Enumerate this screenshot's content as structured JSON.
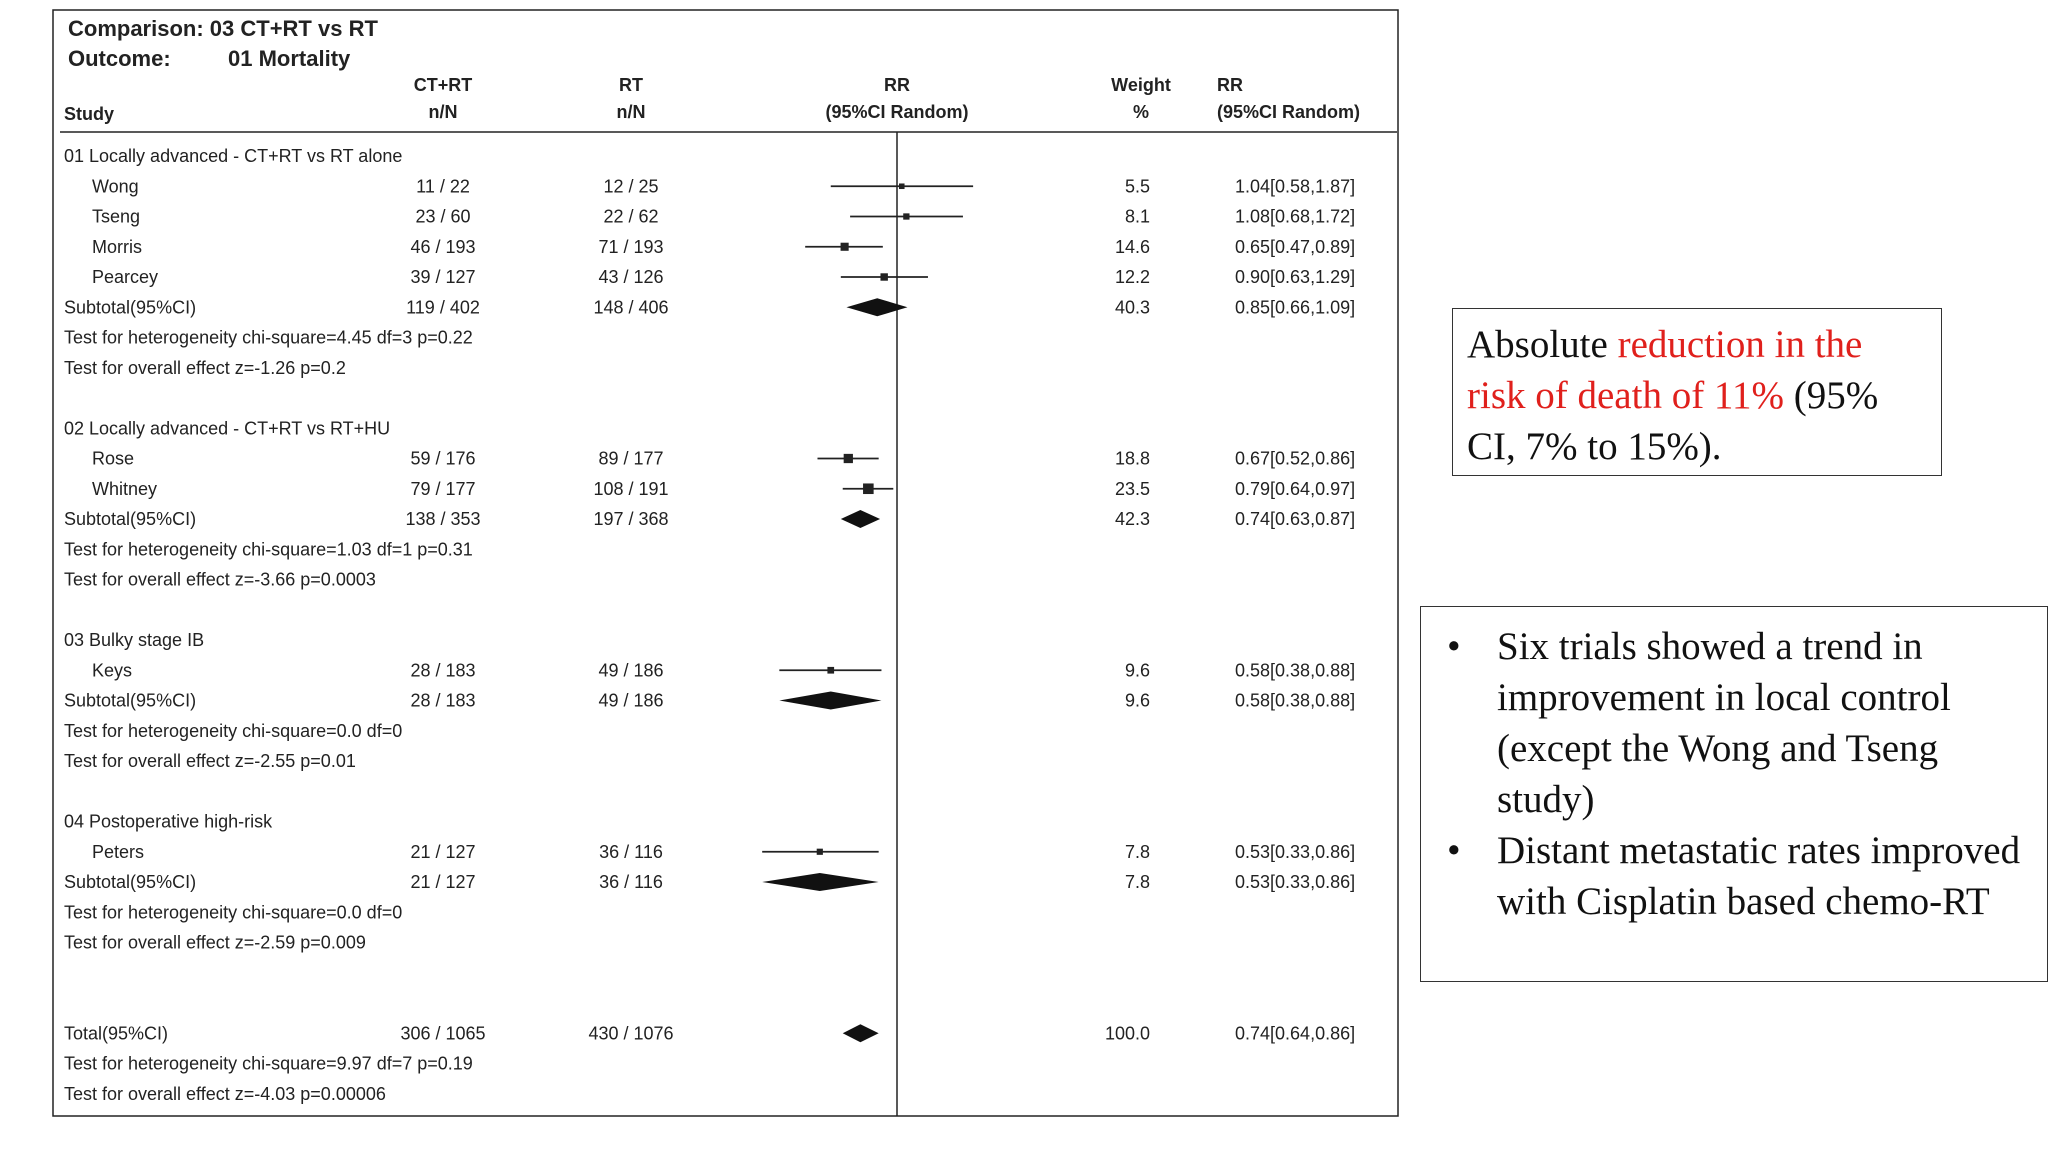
{
  "chart_data": {
    "type": "forest",
    "comparison_label": "Comparison: 03 CT+RT vs RT",
    "outcome_label": "Outcome:",
    "outcome_value": "01 Mortality",
    "columns": {
      "study": "Study",
      "treatment": [
        "CT+RT",
        "n/N"
      ],
      "control": [
        "RT",
        "n/N"
      ],
      "plot": [
        "RR",
        "(95%CI Random)"
      ],
      "weight": [
        "Weight",
        "%"
      ],
      "rr": [
        "RR",
        "(95%CI Random)"
      ]
    },
    "rows": [
      {
        "kind": "group",
        "label": "01 Locally advanced - CT+RT vs RT alone"
      },
      {
        "kind": "study",
        "name": "Wong",
        "treat": "11 / 22",
        "ctrl": "12 / 25",
        "weight": "5.5",
        "rr_text": "1.04[0.58,1.87]",
        "rr": 1.04,
        "lo": 0.58,
        "hi": 1.87
      },
      {
        "kind": "study",
        "name": "Tseng",
        "treat": "23 / 60",
        "ctrl": "22 / 62",
        "weight": "8.1",
        "rr_text": "1.08[0.68,1.72]",
        "rr": 1.08,
        "lo": 0.68,
        "hi": 1.72
      },
      {
        "kind": "study",
        "name": "Morris",
        "treat": "46 / 193",
        "ctrl": "71 / 193",
        "weight": "14.6",
        "rr_text": "0.65[0.47,0.89]",
        "rr": 0.65,
        "lo": 0.47,
        "hi": 0.89
      },
      {
        "kind": "study",
        "name": "Pearcey",
        "treat": "39 / 127",
        "ctrl": "43 / 126",
        "weight": "12.2",
        "rr_text": "0.90[0.63,1.29]",
        "rr": 0.9,
        "lo": 0.63,
        "hi": 1.29
      },
      {
        "kind": "subtotal",
        "name": "Subtotal(95%CI)",
        "treat": "119 / 402",
        "ctrl": "148 / 406",
        "weight": "40.3",
        "rr_text": "0.85[0.66,1.09]",
        "rr": 0.85,
        "lo": 0.66,
        "hi": 1.09
      },
      {
        "kind": "test",
        "label": "Test for heterogeneity chi-square=4.45  df=3  p=0.22"
      },
      {
        "kind": "test",
        "label": "Test for overall effect  z=-1.26  p=0.2"
      },
      {
        "kind": "blank"
      },
      {
        "kind": "group",
        "label": "02 Locally advanced - CT+RT vs RT+HU"
      },
      {
        "kind": "study",
        "name": "Rose",
        "treat": "59 / 176",
        "ctrl": "89 / 177",
        "weight": "18.8",
        "rr_text": "0.67[0.52,0.86]",
        "rr": 0.67,
        "lo": 0.52,
        "hi": 0.86
      },
      {
        "kind": "study",
        "name": "Whitney",
        "treat": "79 / 177",
        "ctrl": "108 / 191",
        "weight": "23.5",
        "rr_text": "0.79[0.64,0.97]",
        "rr": 0.79,
        "lo": 0.64,
        "hi": 0.97
      },
      {
        "kind": "subtotal",
        "name": "Subtotal(95%CI)",
        "treat": "138 / 353",
        "ctrl": "197 / 368",
        "weight": "42.3",
        "rr_text": "0.74[0.63,0.87]",
        "rr": 0.74,
        "lo": 0.63,
        "hi": 0.87
      },
      {
        "kind": "test",
        "label": "Test for heterogeneity chi-square=1.03  df=1  p=0.31"
      },
      {
        "kind": "test",
        "label": "Test for overall effect  z=-3.66  p=0.0003"
      },
      {
        "kind": "blank"
      },
      {
        "kind": "group",
        "label": "03 Bulky stage IB"
      },
      {
        "kind": "study",
        "name": "Keys",
        "treat": "28 / 183",
        "ctrl": "49 / 186",
        "weight": "9.6",
        "rr_text": "0.58[0.38,0.88]",
        "rr": 0.58,
        "lo": 0.38,
        "hi": 0.88
      },
      {
        "kind": "subtotal",
        "name": "Subtotal(95%CI)",
        "treat": "28 / 183",
        "ctrl": "49 / 186",
        "weight": "9.6",
        "rr_text": "0.58[0.38,0.88]",
        "rr": 0.58,
        "lo": 0.38,
        "hi": 0.88
      },
      {
        "kind": "test",
        "label": "Test for heterogeneity chi-square=0.0  df=0"
      },
      {
        "kind": "test",
        "label": "Test for overall effect  z=-2.55  p=0.01"
      },
      {
        "kind": "blank"
      },
      {
        "kind": "group",
        "label": "04 Postoperative high-risk"
      },
      {
        "kind": "study",
        "name": "Peters",
        "treat": "21 / 127",
        "ctrl": "36 / 116",
        "weight": "7.8",
        "rr_text": "0.53[0.33,0.86]",
        "rr": 0.53,
        "lo": 0.33,
        "hi": 0.86
      },
      {
        "kind": "subtotal",
        "name": "Subtotal(95%CI)",
        "treat": "21 / 127",
        "ctrl": "36 / 116",
        "weight": "7.8",
        "rr_text": "0.53[0.33,0.86]",
        "rr": 0.53,
        "lo": 0.33,
        "hi": 0.86
      },
      {
        "kind": "test",
        "label": "Test for heterogeneity chi-square=0.0  df=0"
      },
      {
        "kind": "test",
        "label": "Test for overall effect  z=-2.59  p=0.009"
      },
      {
        "kind": "blank"
      },
      {
        "kind": "blank"
      },
      {
        "kind": "total",
        "name": "Total(95%CI)",
        "treat": "306 / 1065",
        "ctrl": "430 / 1076",
        "weight": "100.0",
        "rr_text": "0.74[0.64,0.86]",
        "rr": 0.74,
        "lo": 0.64,
        "hi": 0.86
      },
      {
        "kind": "test",
        "label": "Test for heterogeneity chi-square=9.97  df=7  p=0.19"
      },
      {
        "kind": "test",
        "label": "Test for overall effect  z=-4.03  p=0.00006"
      }
    ],
    "x_scale": "log",
    "reference_line": 1
  },
  "callout": {
    "lead": "Absolute ",
    "highlight": "reduction in the risk of death of 11%",
    "rest": " (95% CI, 7% to 15%).",
    "highlight_color": "#e0201c"
  },
  "notes": [
    "Six trials showed a trend in improvement in local control (except the Wong and Tseng study)",
    "Distant metastatic rates improved with Cisplatin based chemo-RT"
  ]
}
